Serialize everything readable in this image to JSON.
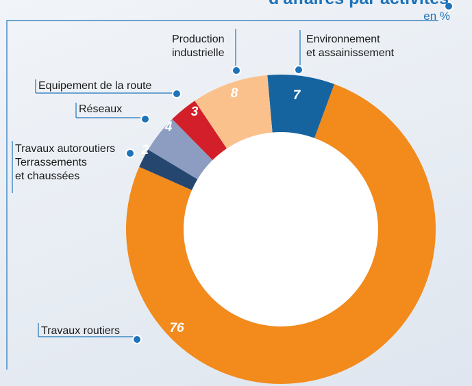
{
  "chart_data": {
    "type": "donut",
    "title": "d'affaires par activités",
    "subtitle": "en %",
    "categories": [
      "Environnement\net assainissement",
      "Travaux routiers",
      "Travaux autoroutiers\nTerrassements\net chaussées",
      "Réseaux",
      "Equipement de la route",
      "Production\nindustrielle"
    ],
    "values": [
      7,
      76,
      2,
      4,
      3,
      8
    ],
    "colors": [
      "#15649f",
      "#f28a1c",
      "#25476f",
      "#8d9dc2",
      "#d21f29",
      "#fbc18d"
    ]
  }
}
